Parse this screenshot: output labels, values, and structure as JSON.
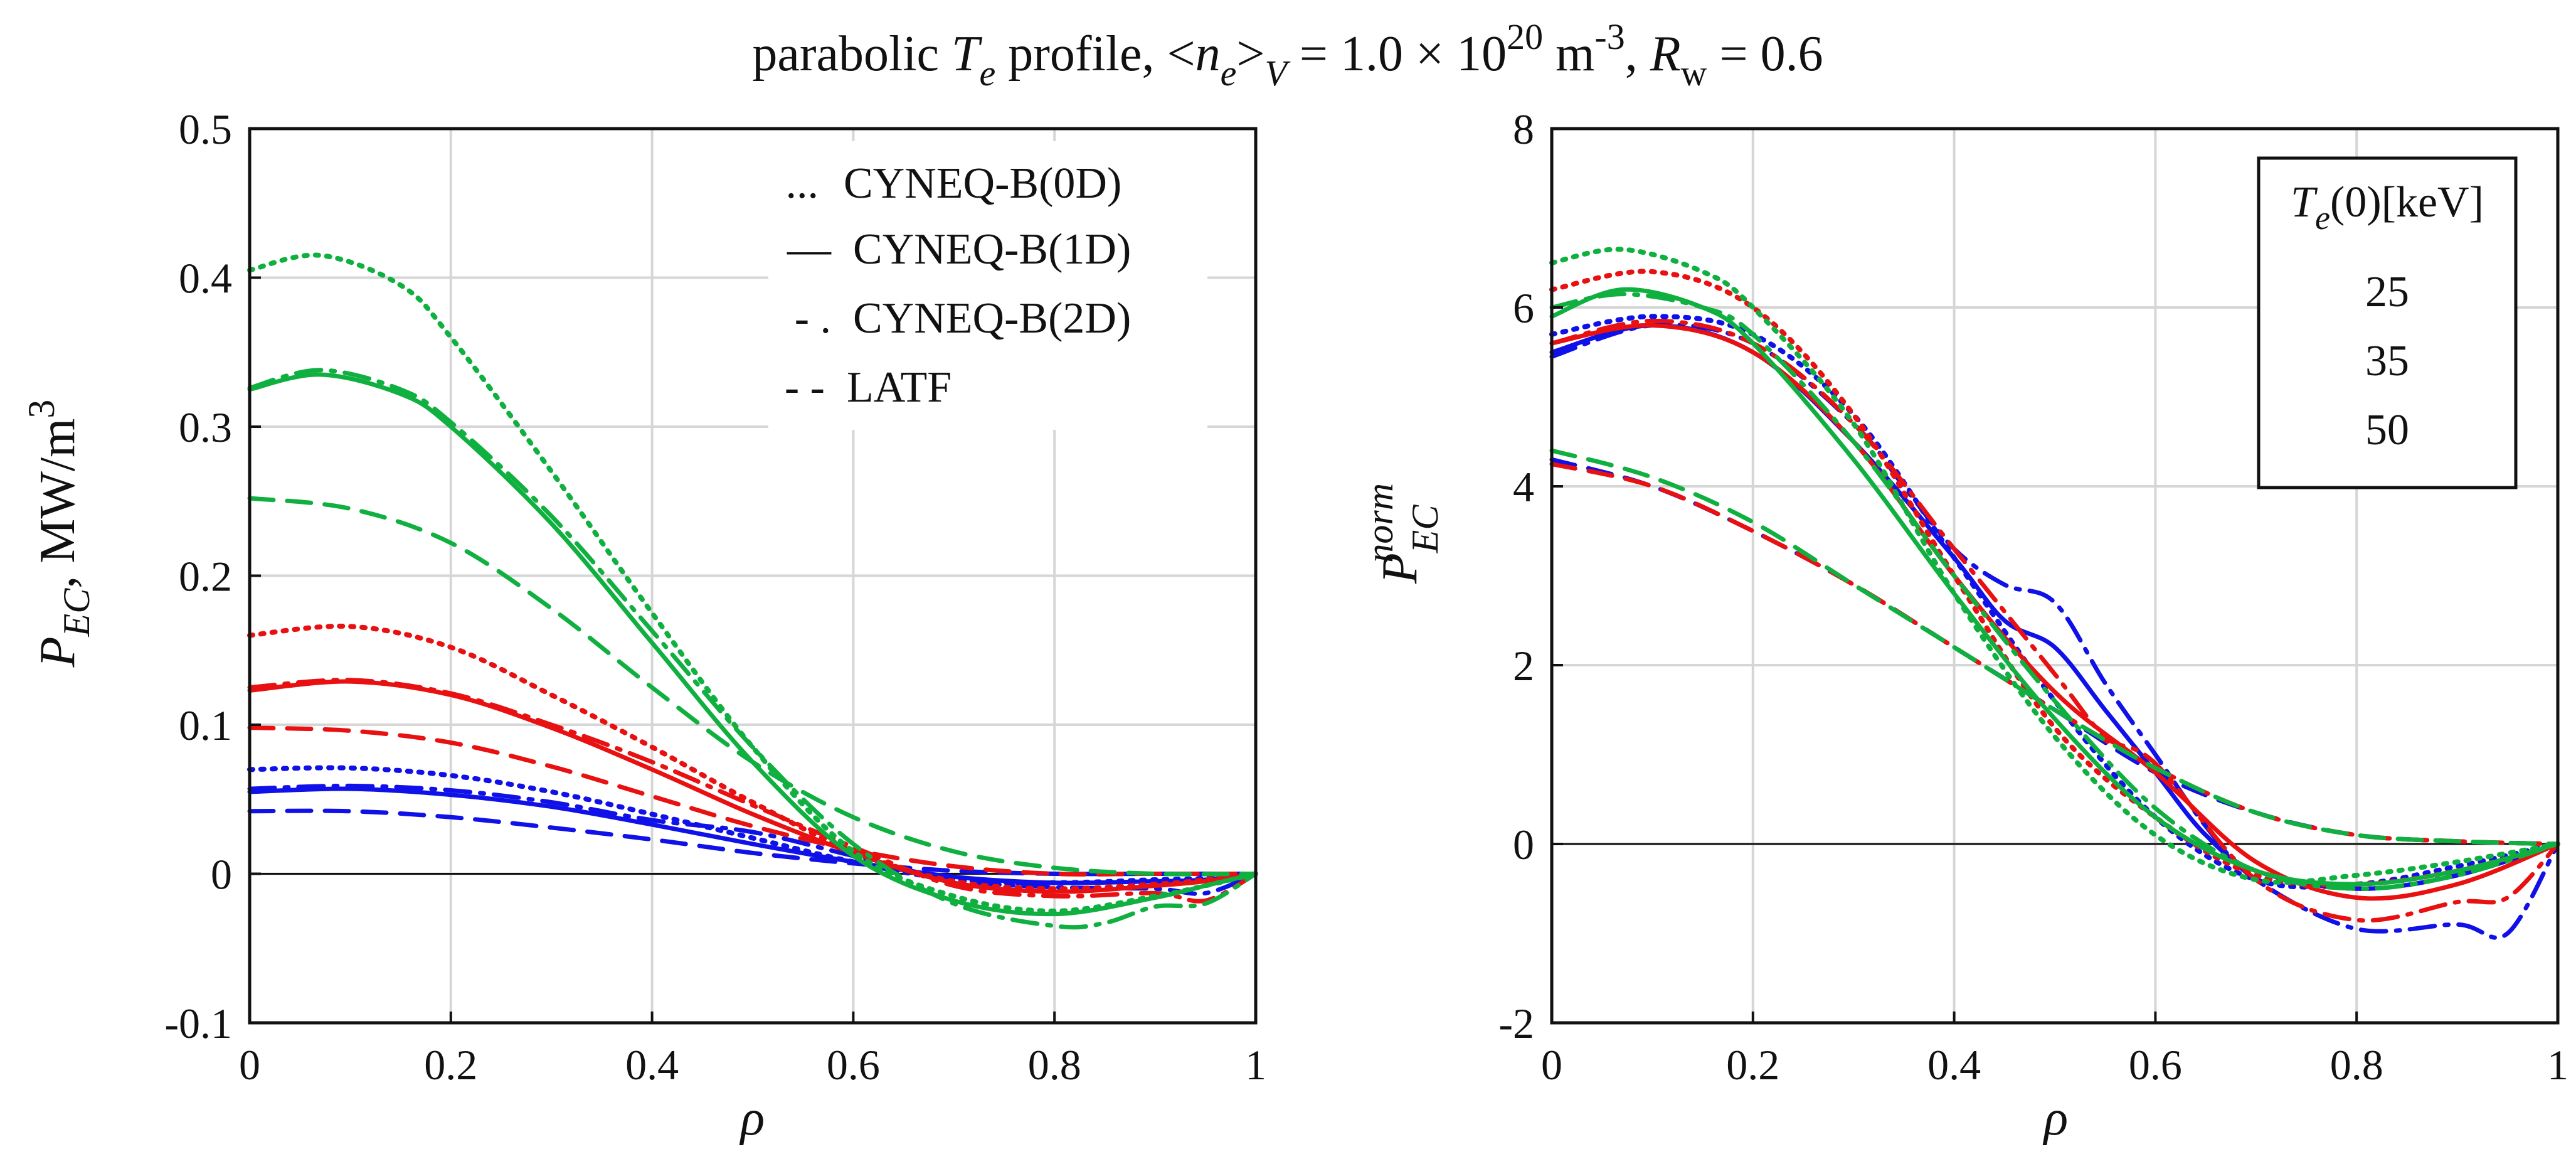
{
  "figure": {
    "title": {
      "prefix": "parabolic ",
      "t": "T",
      "e1": "e",
      "profile": " profile, <",
      "n": "n",
      "e2": "e",
      "gt": ">",
      "v": "V",
      "eq1": " = 1.0 × 10",
      "exp20": "20",
      "unit_m": " m",
      "exp_neg3": "-3",
      "comma": ", ",
      "r": "R",
      "w": "w",
      "eq2": " = 0.6"
    }
  },
  "chart_data": [
    {
      "type": "line",
      "id": "left",
      "xlabel": "ρ",
      "ylabel": {
        "p": "P",
        "sub": "EC",
        "rest": ", MW/m",
        "sup": "3"
      },
      "xlim": [
        0,
        1
      ],
      "ylim": [
        -0.1,
        0.5
      ],
      "xticks": [
        0,
        0.2,
        0.4,
        0.6,
        0.8,
        1
      ],
      "xtick_labels": [
        "0",
        "0.2",
        "0.4",
        "0.6",
        "0.8",
        "1"
      ],
      "yticks": [
        -0.1,
        0,
        0.1,
        0.2,
        0.3,
        0.4,
        0.5
      ],
      "ytick_labels": [
        "-0.1",
        "0",
        "0.1",
        "0.2",
        "0.3",
        "0.4",
        "0.5"
      ],
      "grid": true,
      "zero_line": true,
      "legend": {
        "placement": "top-right",
        "entries": [
          {
            "symbol": "...",
            "style": "dotted",
            "label": "CYNEQ-B(0D)"
          },
          {
            "symbol": "—",
            "style": "solid",
            "label": "CYNEQ-B(1D)"
          },
          {
            "symbol": "- .",
            "style": "dashdot",
            "label": "CYNEQ-B(2D)"
          },
          {
            "symbol": "- -",
            "style": "dashed",
            "label": "LATF"
          }
        ]
      },
      "series": [
        {
          "name": "25 keV, 0D",
          "color": "#1010e8",
          "style": "dotted",
          "x": [
            0,
            0.1,
            0.2,
            0.3,
            0.4,
            0.5,
            0.6,
            0.7,
            0.8,
            0.9,
            0.95,
            1
          ],
          "y": [
            0.07,
            0.071,
            0.066,
            0.055,
            0.04,
            0.024,
            0.008,
            -0.004,
            -0.006,
            -0.004,
            -0.003,
            0
          ]
        },
        {
          "name": "25 keV, 1D",
          "color": "#1010e8",
          "style": "solid",
          "x": [
            0,
            0.1,
            0.2,
            0.3,
            0.4,
            0.5,
            0.6,
            0.7,
            0.8,
            0.9,
            0.95,
            1
          ],
          "y": [
            0.055,
            0.057,
            0.053,
            0.045,
            0.033,
            0.02,
            0.008,
            -0.002,
            -0.006,
            -0.005,
            -0.004,
            0
          ]
        },
        {
          "name": "25 keV, 2D",
          "color": "#1010e8",
          "style": "dashdot",
          "x": [
            0,
            0.1,
            0.2,
            0.3,
            0.4,
            0.5,
            0.6,
            0.7,
            0.8,
            0.9,
            0.95,
            1
          ],
          "y": [
            0.057,
            0.059,
            0.056,
            0.048,
            0.036,
            0.028,
            0.012,
            -0.004,
            -0.009,
            -0.01,
            -0.013,
            0
          ]
        },
        {
          "name": "25 keV, LATF",
          "color": "#1010e8",
          "style": "dashed",
          "x": [
            0,
            0.1,
            0.2,
            0.3,
            0.4,
            0.5,
            0.6,
            0.7,
            0.8,
            0.9,
            1
          ],
          "y": [
            0.042,
            0.042,
            0.038,
            0.031,
            0.023,
            0.014,
            0.007,
            0.002,
            0,
            0,
            0
          ]
        },
        {
          "name": "35 keV, 0D",
          "color": "#e81010",
          "style": "dotted",
          "x": [
            0,
            0.1,
            0.2,
            0.3,
            0.4,
            0.5,
            0.6,
            0.7,
            0.8,
            0.9,
            0.95,
            1
          ],
          "y": [
            0.16,
            0.166,
            0.152,
            0.12,
            0.085,
            0.048,
            0.015,
            -0.005,
            -0.01,
            -0.007,
            -0.004,
            0
          ]
        },
        {
          "name": "35 keV, 1D",
          "color": "#e81010",
          "style": "solid",
          "x": [
            0,
            0.1,
            0.2,
            0.3,
            0.4,
            0.5,
            0.6,
            0.7,
            0.8,
            0.9,
            0.95,
            1
          ],
          "y": [
            0.123,
            0.129,
            0.12,
            0.098,
            0.07,
            0.04,
            0.014,
            -0.006,
            -0.012,
            -0.008,
            -0.005,
            0
          ]
        },
        {
          "name": "35 keV, 2D",
          "color": "#e81010",
          "style": "dashdot",
          "x": [
            0,
            0.1,
            0.2,
            0.3,
            0.4,
            0.5,
            0.6,
            0.7,
            0.8,
            0.9,
            0.95,
            1
          ],
          "y": [
            0.125,
            0.13,
            0.121,
            0.1,
            0.075,
            0.046,
            0.018,
            -0.008,
            -0.015,
            -0.013,
            -0.018,
            0
          ]
        },
        {
          "name": "35 keV, LATF",
          "color": "#e81010",
          "style": "dashed",
          "x": [
            0,
            0.1,
            0.2,
            0.3,
            0.4,
            0.5,
            0.6,
            0.7,
            0.8,
            0.9,
            1
          ],
          "y": [
            0.098,
            0.096,
            0.088,
            0.072,
            0.052,
            0.032,
            0.016,
            0.005,
            0,
            0,
            0
          ]
        },
        {
          "name": "50 keV, 0D",
          "color": "#10b040",
          "style": "dotted",
          "x": [
            0,
            0.07,
            0.15,
            0.2,
            0.3,
            0.4,
            0.5,
            0.6,
            0.7,
            0.8,
            0.9,
            0.95,
            1
          ],
          "y": [
            0.405,
            0.415,
            0.395,
            0.36,
            0.27,
            0.175,
            0.085,
            0.015,
            -0.015,
            -0.025,
            -0.015,
            -0.008,
            0
          ]
        },
        {
          "name": "50 keV, 1D",
          "color": "#10b040",
          "style": "solid",
          "x": [
            0,
            0.07,
            0.15,
            0.2,
            0.3,
            0.4,
            0.5,
            0.6,
            0.7,
            0.8,
            0.9,
            0.95,
            1
          ],
          "y": [
            0.325,
            0.335,
            0.322,
            0.3,
            0.235,
            0.155,
            0.075,
            0.012,
            -0.018,
            -0.027,
            -0.016,
            -0.008,
            0
          ]
        },
        {
          "name": "50 keV, 2D",
          "color": "#10b040",
          "style": "dashdot",
          "x": [
            0,
            0.07,
            0.15,
            0.2,
            0.3,
            0.4,
            0.5,
            0.6,
            0.7,
            0.8,
            0.85,
            0.9,
            0.95,
            1
          ],
          "y": [
            0.326,
            0.338,
            0.325,
            0.303,
            0.24,
            0.163,
            0.085,
            0.02,
            -0.02,
            -0.035,
            -0.033,
            -0.022,
            -0.02,
            0
          ]
        },
        {
          "name": "50 keV, LATF",
          "color": "#10b040",
          "style": "dashed",
          "x": [
            0,
            0.1,
            0.2,
            0.3,
            0.4,
            0.5,
            0.6,
            0.7,
            0.8,
            0.9,
            1
          ],
          "y": [
            0.252,
            0.245,
            0.222,
            0.178,
            0.125,
            0.075,
            0.038,
            0.015,
            0.004,
            0,
            0
          ]
        }
      ]
    },
    {
      "type": "line",
      "id": "right",
      "xlabel": "ρ",
      "ylabel": {
        "p": "P",
        "sub": "EC",
        "sup": "norm"
      },
      "xlim": [
        0,
        1
      ],
      "ylim": [
        -2,
        8
      ],
      "xticks": [
        0,
        0.2,
        0.4,
        0.6,
        0.8,
        1
      ],
      "xtick_labels": [
        "0",
        "0.2",
        "0.4",
        "0.6",
        "0.8",
        "1"
      ],
      "yticks": [
        -2,
        0,
        2,
        4,
        6,
        8
      ],
      "ytick_labels": [
        "-2",
        "0",
        "2",
        "4",
        "6",
        "8"
      ],
      "grid": true,
      "zero_line": true,
      "legend": {
        "placement": "top-right",
        "title": {
          "t": "T",
          "sub": "e",
          "rest": "(0)[keV]"
        },
        "entries": [
          {
            "label": "25",
            "color": "#1010e8"
          },
          {
            "label": "35",
            "color": "#e81010"
          },
          {
            "label": "50",
            "color": "#10b040"
          }
        ]
      },
      "series": [
        {
          "name": "25 keV, 0D",
          "color": "#1010e8",
          "style": "dotted",
          "x": [
            0,
            0.1,
            0.2,
            0.3,
            0.4,
            0.5,
            0.6,
            0.7,
            0.8,
            0.9,
            1
          ],
          "y": [
            5.7,
            5.9,
            5.7,
            4.8,
            3.2,
            1.6,
            0.3,
            -0.4,
            -0.45,
            -0.25,
            0
          ]
        },
        {
          "name": "25 keV, 1D",
          "color": "#1010e8",
          "style": "solid",
          "x": [
            0,
            0.1,
            0.2,
            0.3,
            0.4,
            0.45,
            0.5,
            0.55,
            0.6,
            0.65,
            0.7,
            0.8,
            0.9,
            1
          ],
          "y": [
            5.5,
            5.8,
            5.5,
            4.5,
            3.2,
            2.5,
            2.2,
            1.5,
            0.8,
            0.1,
            -0.3,
            -0.5,
            -0.35,
            0
          ]
        },
        {
          "name": "25 keV, 2D",
          "color": "#1010e8",
          "style": "dashdot",
          "x": [
            0,
            0.1,
            0.2,
            0.3,
            0.35,
            0.4,
            0.45,
            0.5,
            0.55,
            0.6,
            0.65,
            0.7,
            0.8,
            0.9,
            0.95,
            1
          ],
          "y": [
            5.45,
            5.8,
            5.6,
            4.7,
            4.0,
            3.3,
            2.9,
            2.7,
            1.8,
            1.0,
            0.2,
            -0.4,
            -0.95,
            -0.9,
            -1.0,
            0
          ]
        },
        {
          "name": "25 keV, LATF",
          "color": "#1010e8",
          "style": "dashed",
          "x": [
            0,
            0.1,
            0.2,
            0.3,
            0.4,
            0.5,
            0.6,
            0.7,
            0.8,
            0.9,
            1
          ],
          "y": [
            4.3,
            4.0,
            3.5,
            2.9,
            2.2,
            1.5,
            0.8,
            0.35,
            0.1,
            0.03,
            0
          ]
        },
        {
          "name": "35 keV, 0D",
          "color": "#e81010",
          "style": "dotted",
          "x": [
            0,
            0.1,
            0.2,
            0.3,
            0.4,
            0.5,
            0.6,
            0.7,
            0.8,
            0.9,
            1
          ],
          "y": [
            6.2,
            6.4,
            6.0,
            4.8,
            3.0,
            1.3,
            0.3,
            -0.35,
            -0.45,
            -0.3,
            0
          ]
        },
        {
          "name": "35 keV, 1D",
          "color": "#e81010",
          "style": "solid",
          "x": [
            0,
            0.1,
            0.2,
            0.3,
            0.4,
            0.5,
            0.6,
            0.7,
            0.8,
            0.9,
            1
          ],
          "y": [
            5.6,
            5.8,
            5.5,
            4.5,
            3.0,
            1.7,
            0.8,
            -0.2,
            -0.6,
            -0.45,
            0
          ]
        },
        {
          "name": "35 keV, 2D",
          "color": "#e81010",
          "style": "dashdot",
          "x": [
            0,
            0.1,
            0.2,
            0.3,
            0.4,
            0.5,
            0.55,
            0.6,
            0.7,
            0.8,
            0.9,
            0.95,
            1
          ],
          "y": [
            5.6,
            5.85,
            5.6,
            4.7,
            3.3,
            1.9,
            1.2,
            0.9,
            -0.4,
            -0.85,
            -0.65,
            -0.6,
            0
          ]
        },
        {
          "name": "35 keV, LATF",
          "color": "#e81010",
          "style": "dashed",
          "x": [
            0,
            0.1,
            0.2,
            0.3,
            0.4,
            0.5,
            0.6,
            0.7,
            0.8,
            0.9,
            1
          ],
          "y": [
            4.25,
            4.0,
            3.5,
            2.9,
            2.2,
            1.5,
            0.85,
            0.35,
            0.1,
            0.03,
            0
          ]
        },
        {
          "name": "50 keV, 0D",
          "color": "#10b040",
          "style": "dotted",
          "x": [
            0,
            0.07,
            0.15,
            0.2,
            0.3,
            0.4,
            0.5,
            0.6,
            0.7,
            0.8,
            0.9,
            1
          ],
          "y": [
            6.5,
            6.65,
            6.4,
            6.0,
            4.7,
            2.8,
            1.2,
            0.1,
            -0.4,
            -0.35,
            -0.2,
            0
          ]
        },
        {
          "name": "50 keV, 1D",
          "color": "#10b040",
          "style": "solid",
          "x": [
            0,
            0.07,
            0.15,
            0.2,
            0.3,
            0.4,
            0.5,
            0.6,
            0.7,
            0.8,
            0.9,
            1
          ],
          "y": [
            5.9,
            6.2,
            6.0,
            5.6,
            4.3,
            2.8,
            1.4,
            0.3,
            -0.3,
            -0.45,
            -0.3,
            0
          ]
        },
        {
          "name": "50 keV, 2D",
          "color": "#10b040",
          "style": "dashdot",
          "x": [
            0,
            0.07,
            0.15,
            0.2,
            0.3,
            0.4,
            0.5,
            0.6,
            0.7,
            0.8,
            0.9,
            1
          ],
          "y": [
            6.0,
            6.15,
            6.0,
            5.7,
            4.5,
            3.0,
            1.6,
            0.4,
            -0.3,
            -0.5,
            -0.35,
            0
          ]
        },
        {
          "name": "50 keV, LATF",
          "color": "#10b040",
          "style": "dashed",
          "x": [
            0,
            0.1,
            0.2,
            0.3,
            0.4,
            0.5,
            0.6,
            0.7,
            0.8,
            0.9,
            1
          ],
          "y": [
            4.4,
            4.1,
            3.6,
            2.9,
            2.2,
            1.5,
            0.85,
            0.35,
            0.1,
            0.03,
            0
          ]
        }
      ]
    }
  ]
}
